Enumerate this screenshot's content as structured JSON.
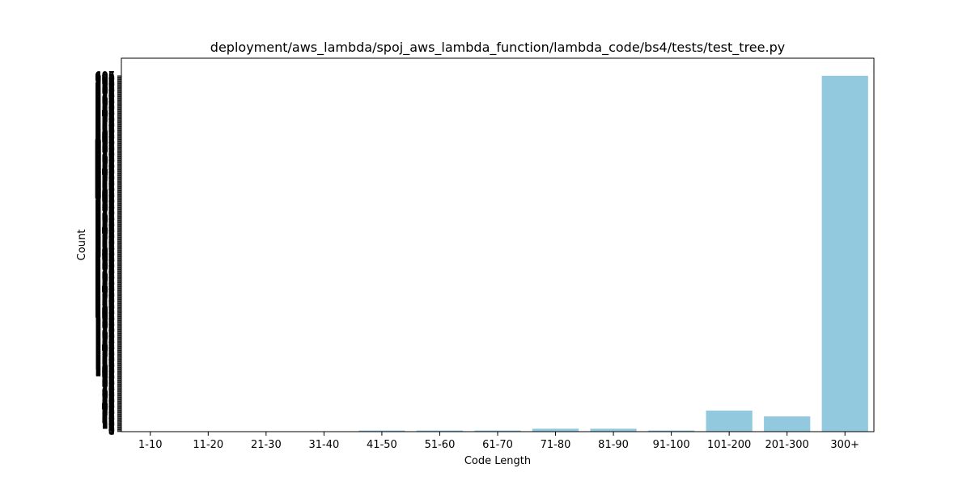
{
  "chart_data": {
    "type": "bar",
    "title": "deployment/aws_lambda/spoj_aws_lambda_function/lambda_code/bs4/tests/test_tree.py",
    "xlabel": "Code Length",
    "ylabel": "Count",
    "categories": [
      "1-10",
      "11-20",
      "21-30",
      "31-40",
      "41-50",
      "51-60",
      "61-70",
      "71-80",
      "81-90",
      "91-100",
      "101-200",
      "201-300",
      "300+"
    ],
    "values": [
      0,
      0,
      0,
      0,
      2,
      2,
      2,
      5,
      5,
      2,
      36,
      26,
      607
    ],
    "ylim": [
      0,
      637
    ],
    "bar_color": "#92c9df",
    "grid": false
  }
}
